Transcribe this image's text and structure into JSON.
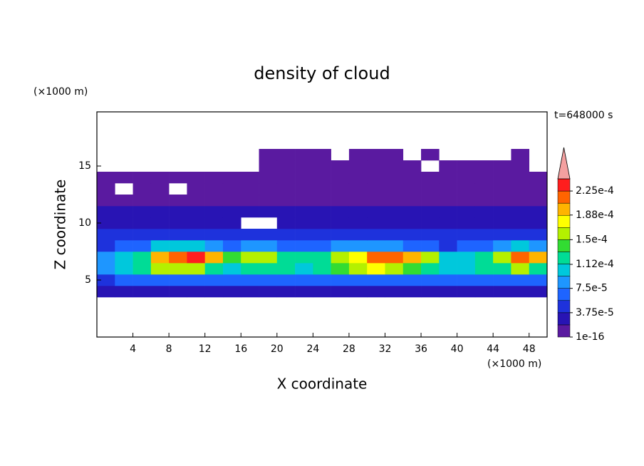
{
  "chart_data": {
    "type": "contour",
    "title": "density of cloud",
    "time_label": "t=648000 s",
    "x_label": "X coordinate",
    "y_label": "Z coordinate",
    "x_unit": "(×1000 m)",
    "y_unit": "(×1000 m)",
    "xlim": [
      0,
      50
    ],
    "ylim": [
      0,
      19.75
    ],
    "xticks": [
      4,
      8,
      12,
      16,
      20,
      24,
      28,
      32,
      36,
      40,
      44,
      48
    ],
    "yticks": [
      5,
      10,
      15
    ],
    "x": [
      1,
      3,
      5,
      7,
      9,
      11,
      13,
      15,
      17,
      19,
      21,
      23,
      25,
      27,
      29,
      31,
      33,
      35,
      37,
      39,
      41,
      43,
      45,
      47,
      49
    ],
    "y": [
      4,
      5,
      6,
      7,
      8,
      9,
      10,
      11,
      12,
      13,
      14,
      15,
      16
    ],
    "z": [
      [
        2e-05,
        2e-05,
        2e-05,
        2e-05,
        2e-05,
        2e-05,
        2e-05,
        2e-05,
        2e-05,
        2e-05,
        2e-05,
        2e-05,
        2e-05,
        2e-05,
        2e-05,
        2e-05,
        2e-05,
        2e-05,
        2e-05,
        2e-05,
        2e-05,
        2e-05,
        2e-05,
        2e-05,
        2e-05
      ],
      [
        5e-05,
        6e-05,
        6e-05,
        7e-05,
        7e-05,
        6e-05,
        6e-05,
        6e-05,
        6e-05,
        7e-05,
        6e-05,
        6e-05,
        6e-05,
        6e-05,
        7e-05,
        7e-05,
        7e-05,
        6e-05,
        6e-05,
        6e-05,
        6e-05,
        6e-05,
        7e-05,
        7e-05,
        6e-05
      ],
      [
        9e-05,
        0.00011,
        0.00012,
        0.00015,
        0.00016,
        0.00015,
        0.00013,
        0.00011,
        0.00012,
        0.00013,
        0.00012,
        0.00011,
        0.00012,
        0.00014,
        0.00016,
        0.00017,
        0.00016,
        0.00014,
        0.00012,
        0.0001,
        0.00011,
        0.00012,
        0.00013,
        0.00015,
        0.00013
      ],
      [
        8e-05,
        0.0001,
        0.00013,
        0.00019,
        0.00022,
        0.00023,
        0.00019,
        0.00014,
        0.00015,
        0.00015,
        0.00013,
        0.00012,
        0.00013,
        0.00015,
        0.00018,
        0.00021,
        0.00022,
        0.0002,
        0.00015,
        0.00011,
        0.0001,
        0.00012,
        0.00016,
        0.00022,
        0.0002
      ],
      [
        5e-05,
        6e-05,
        7e-05,
        0.0001,
        0.00011,
        0.0001,
        8e-05,
        7e-05,
        9e-05,
        9e-05,
        7e-05,
        6e-05,
        6e-05,
        8e-05,
        9e-05,
        9e-05,
        8e-05,
        7e-05,
        6e-05,
        5e-05,
        6e-05,
        7e-05,
        8e-05,
        0.0001,
        9e-05
      ],
      [
        4e-05,
        4e-05,
        5e-05,
        5e-05,
        4e-05,
        4e-05,
        4e-05,
        4e-05,
        5e-05,
        5e-05,
        4e-05,
        4e-05,
        4e-05,
        4e-05,
        5e-05,
        5e-05,
        4e-05,
        4e-05,
        4e-05,
        4e-05,
        5e-05,
        5e-05,
        4e-05,
        4e-05,
        5e-05
      ],
      [
        3e-05,
        3e-05,
        3e-05,
        3e-05,
        3e-05,
        3e-05,
        3e-05,
        3e-05,
        null,
        null,
        3e-05,
        3e-05,
        3e-05,
        3e-05,
        3e-05,
        3e-05,
        3e-05,
        3e-05,
        3e-05,
        3e-05,
        3e-05,
        3e-05,
        3e-05,
        3e-05,
        3e-05
      ],
      [
        2e-05,
        2e-05,
        2e-05,
        2e-05,
        2e-05,
        2e-05,
        2e-05,
        2e-05,
        2e-05,
        2e-05,
        2e-05,
        2e-05,
        2e-05,
        2e-05,
        2e-05,
        2e-05,
        2e-05,
        2e-05,
        2e-05,
        2e-05,
        2e-05,
        2e-05,
        2e-05,
        2e-05,
        2e-05
      ],
      [
        1e-05,
        1e-05,
        1e-05,
        1e-05,
        1e-05,
        1e-05,
        1e-05,
        1e-05,
        1e-05,
        1e-05,
        1e-05,
        1e-05,
        1e-05,
        1e-05,
        1e-05,
        1e-05,
        1e-05,
        1e-05,
        1e-05,
        1e-05,
        1e-05,
        1e-05,
        1e-05,
        1e-05,
        1e-05
      ],
      [
        5e-06,
        null,
        5e-06,
        5e-06,
        null,
        5e-06,
        5e-06,
        5e-06,
        5e-06,
        5e-06,
        5e-06,
        5e-06,
        5e-06,
        5e-06,
        5e-06,
        5e-06,
        5e-06,
        5e-06,
        5e-06,
        5e-06,
        5e-06,
        5e-06,
        5e-06,
        5e-06,
        5e-06
      ],
      [
        3e-06,
        3e-06,
        3e-06,
        3e-06,
        3e-06,
        3e-06,
        3e-06,
        3e-06,
        3e-06,
        3e-06,
        3e-06,
        3e-06,
        3e-06,
        3e-06,
        3e-06,
        3e-06,
        3e-06,
        3e-06,
        3e-06,
        3e-06,
        3e-06,
        3e-06,
        3e-06,
        3e-06,
        3e-06
      ],
      [
        null,
        null,
        null,
        null,
        null,
        null,
        null,
        null,
        null,
        3e-06,
        3e-06,
        3e-06,
        3e-06,
        3e-06,
        3e-06,
        3e-06,
        3e-06,
        3e-06,
        null,
        3e-06,
        3e-06,
        3e-06,
        3e-06,
        3e-06,
        null
      ],
      [
        null,
        null,
        null,
        null,
        null,
        null,
        null,
        null,
        null,
        2e-06,
        2e-06,
        2e-06,
        2e-06,
        null,
        2e-06,
        2e-06,
        2e-06,
        null,
        2e-06,
        null,
        null,
        null,
        null,
        2e-06,
        null
      ]
    ],
    "levels": [
      1e-16,
      1.875e-05,
      3.75e-05,
      5.625e-05,
      7.5e-05,
      9.375e-05,
      0.0001125,
      0.00013125,
      0.00015,
      0.00016875,
      0.0001875,
      0.00020625,
      0.000225,
      0.00024375
    ],
    "colors": [
      "#5a1aa0",
      "#2814b4",
      "#1e32dc",
      "#1e64ff",
      "#1e96ff",
      "#00c8dc",
      "#00dc96",
      "#32dc32",
      "#b4f000",
      "#ffff00",
      "#ffb400",
      "#ff6400",
      "#ff1e1e"
    ],
    "over_color": "#f4a0a0",
    "colorbar_ticks": [
      {
        "value": 1e-16,
        "label": "1e-16"
      },
      {
        "value": 3.75e-05,
        "label": "3.75e-5"
      },
      {
        "value": 7.5e-05,
        "label": "7.5e-5"
      },
      {
        "value": 0.000112,
        "label": "1.12e-4"
      },
      {
        "value": 0.00015,
        "label": "1.5e-4"
      },
      {
        "value": 0.000188,
        "label": "1.88e-4"
      },
      {
        "value": 0.000225,
        "label": "2.25e-4"
      }
    ]
  }
}
